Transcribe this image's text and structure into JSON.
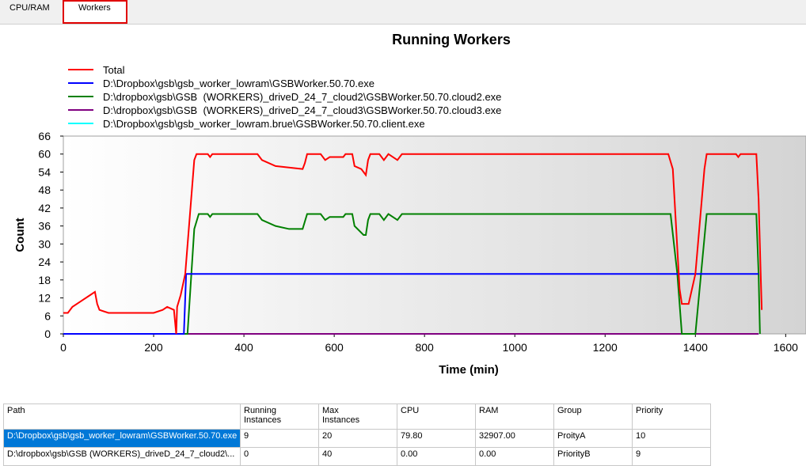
{
  "tabs": [
    "CPU/RAM",
    "Workers"
  ],
  "chart_data": {
    "type": "line",
    "title": "Running Workers",
    "x_label": "Time (min)",
    "y_label": "Count",
    "xlim": [
      0,
      1645
    ],
    "xticks": [
      0,
      200,
      400,
      600,
      800,
      1000,
      1200,
      1400,
      1600
    ],
    "ylim": [
      0,
      66
    ],
    "yticks": [
      0,
      6,
      12,
      18,
      24,
      30,
      36,
      42,
      48,
      54,
      60,
      66
    ],
    "series": [
      {
        "name": "Total",
        "color": "#ff0000",
        "x": [
          0,
          10,
          20,
          40,
          60,
          70,
          75,
          80,
          100,
          200,
          220,
          230,
          245,
          250,
          252,
          260,
          270,
          290,
          295,
          320,
          325,
          330,
          430,
          440,
          470,
          530,
          535,
          540,
          570,
          580,
          590,
          620,
          625,
          640,
          645,
          660,
          670,
          675,
          680,
          700,
          710,
          720,
          740,
          750,
          1340,
          1350,
          1365,
          1370,
          1385,
          1400,
          1420,
          1425,
          1490,
          1495,
          1500,
          1535,
          1540,
          1545,
          1547
        ],
        "values": [
          7,
          7,
          9,
          11,
          13,
          14,
          10,
          8,
          7,
          7,
          8,
          9,
          8,
          0,
          9,
          13,
          20,
          58,
          60,
          60,
          59,
          60,
          60,
          58,
          56,
          55,
          57,
          60,
          60,
          58,
          59,
          59,
          60,
          60,
          56,
          55,
          53,
          58,
          60,
          60,
          58,
          60,
          58,
          60,
          60,
          55,
          15,
          10,
          10,
          20,
          55,
          60,
          60,
          59,
          60,
          60,
          45,
          18,
          8
        ]
      },
      {
        "name": "D:\\Dropbox\\gsb\\gsb_worker_lowram\\GSBWorker.50.70.exe",
        "color": "#0000ff",
        "x": [
          0,
          267,
          272,
          1540
        ],
        "values": [
          0,
          0,
          20,
          20
        ]
      },
      {
        "name": "D:\\dropbox\\gsb\\GSB  (WORKERS)_driveD_24_7_cloud2\\GSBWorker.50.70.cloud2.exe",
        "color": "#008000",
        "x": [
          0,
          275,
          290,
          300,
          320,
          325,
          330,
          430,
          440,
          470,
          500,
          530,
          540,
          570,
          580,
          590,
          620,
          625,
          640,
          645,
          665,
          670,
          675,
          680,
          700,
          710,
          720,
          740,
          750,
          1345,
          1360,
          1370,
          1400,
          1425,
          1535,
          1540,
          1543
        ],
        "values": [
          0,
          0,
          35,
          40,
          40,
          39,
          40,
          40,
          38,
          36,
          35,
          35,
          40,
          40,
          38,
          39,
          39,
          40,
          40,
          36,
          33,
          33,
          38,
          40,
          40,
          38,
          40,
          38,
          40,
          40,
          20,
          0,
          0,
          40,
          40,
          20,
          0
        ]
      },
      {
        "name": "D:\\dropbox\\gsb\\GSB  (WORKERS)_driveD_24_7_cloud3\\GSBWorker.50.70.cloud3.exe",
        "color": "#800080",
        "x": [
          0,
          1540
        ],
        "values": [
          0,
          0
        ]
      },
      {
        "name": "D:\\Dropbox\\gsb\\gsb_worker_lowram.brue\\GSBWorker.50.70.client.exe",
        "color": "#00ffff",
        "x": [
          0,
          1540
        ],
        "values": [
          0,
          0
        ]
      }
    ]
  },
  "table": {
    "header": [
      "Path",
      "Running\nInstances",
      "Max\nInstances",
      "CPU",
      "RAM",
      "Group",
      "Priority"
    ],
    "rows": [
      [
        "D:\\Dropbox\\gsb\\gsb_worker_lowram\\GSBWorker.50.70.exe",
        "9",
        "20",
        "79.80",
        "32907.00",
        "ProityA",
        "10"
      ],
      [
        "D:\\dropbox\\gsb\\GSB (WORKERS)_driveD_24_7_cloud2\\...",
        "0",
        "40",
        "0.00",
        "0.00",
        "PriorityB",
        "9"
      ]
    ]
  }
}
